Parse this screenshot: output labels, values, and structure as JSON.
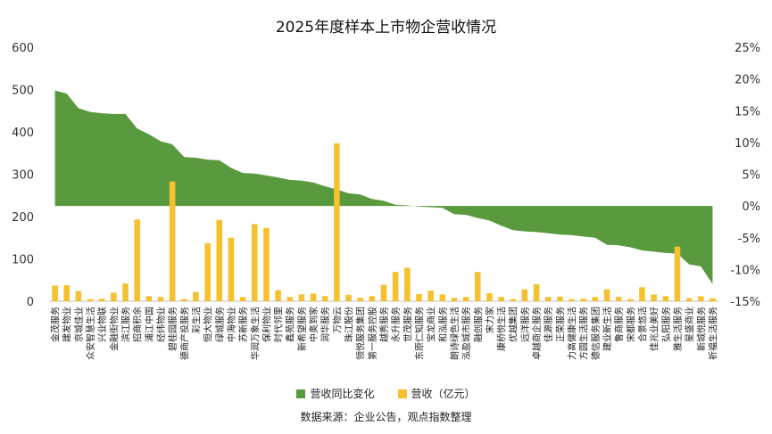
{
  "chart_data": {
    "type": "bar+area",
    "title": "2025年度样本上市物企营收情况",
    "source": "数据来源：企业公告，观点指数整理",
    "colors": {
      "revenue": "#f6c12e",
      "growth": "#5a9a3f"
    },
    "y_left": {
      "ticks": [
        0,
        100,
        200,
        300,
        400,
        500,
        600
      ],
      "ylim": [
        0,
        600
      ]
    },
    "y_right": {
      "ticks": [
        "25%",
        "20%",
        "15%",
        "10%",
        "5%",
        "0%",
        "-5%",
        "-10%",
        "-15%"
      ],
      "ylim": [
        -15,
        25
      ]
    },
    "series": [
      {
        "name": "营收同比变化",
        "type": "area"
      },
      {
        "name": "营收（亿元）",
        "type": "bar"
      }
    ],
    "categories": [
      "金茂服务",
      "建发物业",
      "京城佳业",
      "众安智慧生活",
      "兴业物联",
      "金融街物业",
      "滨江服务",
      "招商积余",
      "浦江中国",
      "经纬物业",
      "碧桂园服务",
      "德商产投服务",
      "彩生活",
      "恒大物业",
      "绿城服务",
      "中海物业",
      "苏新服务",
      "华润万象生活",
      "保利物业",
      "时代邻里",
      "鑫苑服务",
      "新希望服务",
      "中奥到家",
      "润华服务",
      "万物云",
      "珠江股份",
      "领悦服务集团",
      "第一服务控股",
      "越秀服务",
      "永升服务",
      "世茂服务",
      "东原仁知服务",
      "宝龙商业",
      "和泓服务",
      "朗诗绿色生活",
      "泓盈城市服务",
      "融创服务",
      "宋力家",
      "康桥悦生活",
      "优越集团",
      "远洋服务",
      "卓越商企服务",
      "佳源服务",
      "正荣服务",
      "力高健康生活",
      "方圆生活服务",
      "德信服务集团",
      "建业新生活",
      "鲁商服务",
      "宋都服务",
      "合景悠活",
      "佳兆业美好",
      "弘阳服务",
      "雅生活服务",
      "星盛商业",
      "新城悦服务",
      "祈福生活服务"
    ],
    "revenue": [
      37,
      38,
      24,
      5,
      6,
      20,
      42,
      193,
      12,
      10,
      283,
      5,
      22,
      137,
      192,
      150,
      10,
      182,
      173,
      26,
      10,
      16,
      18,
      12,
      373,
      15,
      8,
      12,
      39,
      69,
      79,
      17,
      25,
      16,
      8,
      10,
      69,
      19,
      10,
      5,
      28,
      40,
      10,
      11,
      5,
      6,
      10,
      28,
      10,
      5,
      33,
      16,
      12,
      129,
      7,
      12,
      7
    ],
    "growth": [
      18.2,
      17.7,
      15.4,
      14.8,
      14.6,
      14.5,
      14.5,
      12.2,
      11.3,
      10.2,
      9.7,
      7.7,
      7.6,
      7.3,
      7.2,
      6.0,
      5.2,
      5.1,
      4.8,
      4.5,
      4.1,
      4.0,
      3.7,
      3.1,
      2.6,
      2.0,
      1.8,
      1.1,
      0.8,
      0.2,
      0.1,
      -0.1,
      -0.2,
      -0.3,
      -1.3,
      -1.4,
      -1.9,
      -2.3,
      -3.1,
      -3.8,
      -4.0,
      -4.1,
      -4.3,
      -4.5,
      -4.6,
      -4.8,
      -5.0,
      -6.1,
      -6.2,
      -6.5,
      -7.0,
      -7.2,
      -7.4,
      -7.5,
      -9.2,
      -9.5,
      -12.3
    ]
  }
}
